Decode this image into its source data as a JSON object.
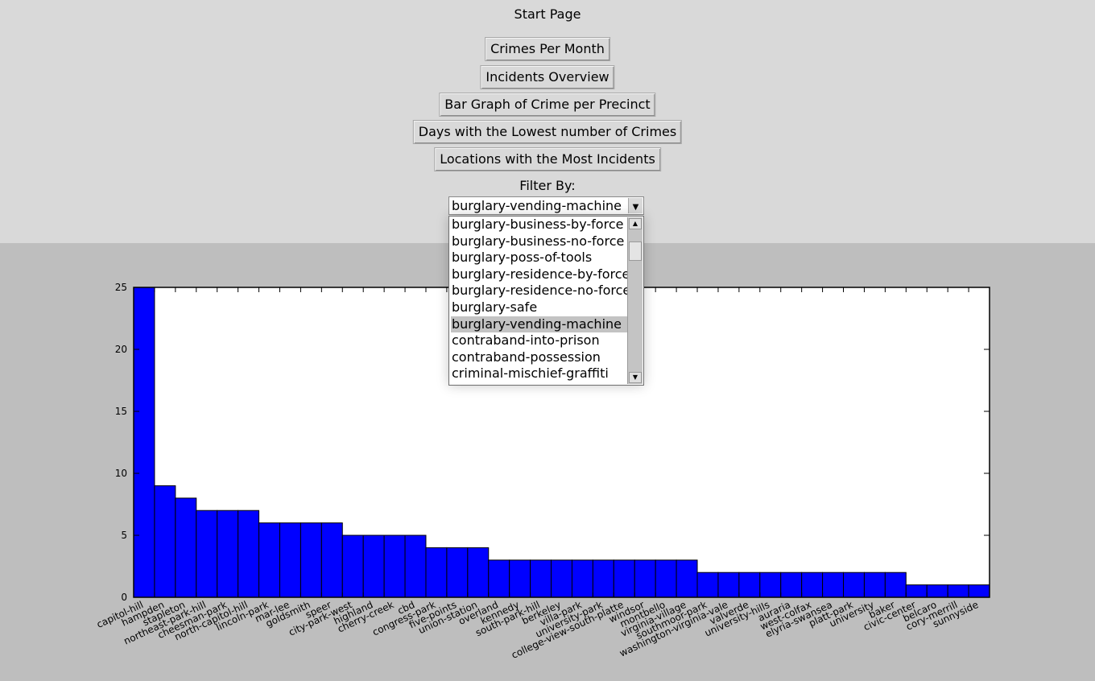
{
  "window": {
    "title": "Start Page"
  },
  "buttons": {
    "crimes_per_month": "Crimes Per Month",
    "incidents_overview": "Incidents Overview",
    "bar_graph_precinct": "Bar Graph of Crime per Precinct",
    "lowest_days": "Days with the Lowest number of Crimes",
    "most_locations": "Locations with the Most Incidents"
  },
  "filter": {
    "label": "Filter By:",
    "selected": "burglary-vending-machine",
    "visible_options": [
      "burglary-business-by-force",
      "burglary-business-no-force",
      "burglary-poss-of-tools",
      "burglary-residence-by-force",
      "burglary-residence-no-force",
      "burglary-safe",
      "burglary-vending-machine",
      "contraband-into-prison",
      "contraband-possession",
      "criminal-mischief-graffiti"
    ],
    "selected_index": 6,
    "scroll_position": 0.1
  },
  "icons": {
    "combo_arrow": "chevron-down-icon",
    "scroll_up": "arrow-up-icon",
    "scroll_down": "arrow-down-icon"
  },
  "colors": {
    "panel_bg": "#d9d9d9",
    "chart_area_bg": "#bebebe",
    "bar_fill": "#0000ff",
    "list_selection": "#c3c3c3"
  },
  "chart_data": {
    "type": "bar",
    "title": "",
    "xlabel": "",
    "ylabel": "",
    "ylim": [
      0,
      25
    ],
    "yticks": [
      0,
      5,
      10,
      15,
      20,
      25
    ],
    "grid": false,
    "categories": [
      "capitol-hill",
      "hampden",
      "stapleton",
      "northeast-park-hill",
      "cheesman-park",
      "north-capitol-hill",
      "lincoln-park",
      "mar-lee",
      "goldsmith",
      "speer",
      "city-park-west",
      "highland",
      "cherry-creek",
      "cbd",
      "congress-park",
      "five-points",
      "union-station",
      "overland",
      "kennedy",
      "south-park-hill",
      "berkeley",
      "villa-park",
      "university-park",
      "college-view-south-platte",
      "windsor",
      "montbello",
      "virginia-village",
      "southmoor-park",
      "washington-virginia-vale",
      "valverde",
      "university-hills",
      "auraria",
      "west-colfax",
      "elyria-swansea",
      "platt-park",
      "university",
      "baker",
      "civic-center",
      "belcaro",
      "cory-merrill",
      "sunnyside"
    ],
    "values": [
      25,
      9,
      8,
      7,
      7,
      7,
      6,
      6,
      6,
      6,
      5,
      5,
      5,
      5,
      4,
      4,
      4,
      3,
      3,
      3,
      3,
      3,
      3,
      3,
      3,
      3,
      3,
      2,
      2,
      2,
      2,
      2,
      2,
      2,
      2,
      2,
      2,
      1,
      1,
      1,
      1
    ],
    "labeled_ticks": [
      "capitol-hill",
      "hampden",
      "stapleton",
      "northeast-park-hill",
      "cheesman-park",
      "north-capitol-hill",
      "lincoln-park",
      "mar-lee",
      "goldsmith",
      "speer",
      "city-park-west",
      "highland",
      "cherry-creek",
      "cbd",
      "congress-park",
      "five-points",
      "union-station",
      "overland",
      "kennedy",
      "south-park-hill",
      "berkeley",
      "villa-park",
      "university-park",
      "college-view-south-platte",
      "windsor",
      "montbello",
      "virginia-village",
      "southmoor-park",
      "washington-virginia-vale",
      "valverde",
      "university-hills",
      "auraria",
      "west-colfax",
      "elyria-swansea",
      "platt-park",
      "university",
      "baker",
      "civic-center",
      "belcaro",
      "cory-merrill",
      "sunnyside"
    ]
  }
}
